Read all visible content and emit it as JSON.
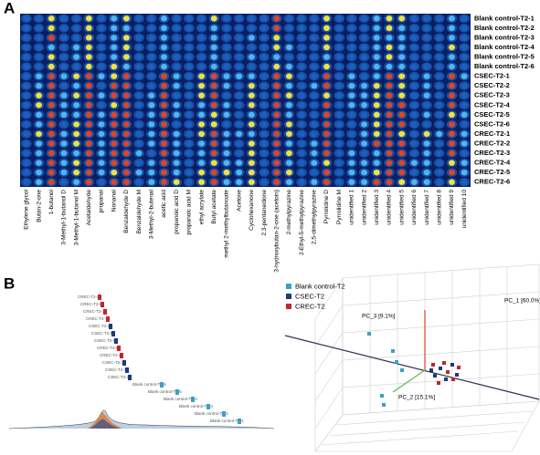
{
  "panel_a": {
    "label": "A",
    "rows": [
      "Blank control-T2-1",
      "Blank control-T2-2",
      "Blank control-T2-3",
      "Blank control-T2-4",
      "Blank control-T2-5",
      "Blank control-T2-6",
      "CSEC-T2-1",
      "CSEC-T2-2",
      "CSEC-T2-3",
      "CSEC-T2-4",
      "CSEC-T2-5",
      "CSEC-T2-6",
      "CREC-T2-1",
      "CREC-T2-2",
      "CREC-T2-3",
      "CREC-T2-4",
      "CREC-T2-5",
      "CREC-T2-6"
    ],
    "columns": [
      "Ethylene glycol",
      "Butan-2-one",
      "1-butanol",
      "3-Methyl-1-butanol D",
      "3-Methyl-1-butanol M",
      "Acetaldehyde",
      "propanal",
      "Nonanal",
      "Benzaldehyde D",
      "Benzaldehyde M",
      "3-Methyl-2-butenal",
      "acetic acid",
      "propanoic acid D",
      "propanoic acid M",
      "ethyl acrylate",
      "Butyl acetate",
      "methyl 2-methylbutanoate",
      "Acetone",
      "Cyclohexanone",
      "2,3-pentanedione",
      "3-hydroxybutan-2-one (acetoin)",
      "2-methylpyrazine",
      "2-Ethyl-5-methylpyrazine",
      "2,5-dimethylpyrazine",
      "Pyrrolidine D",
      "Pyrrolidine M",
      "unidentified 1",
      "unidentified 2",
      "unidentified 3",
      "unidentified 4",
      "unidentified 5",
      "unidentified 6",
      "unidentified 7",
      "unidentified 8",
      "unidentified 9",
      "unidentified 10"
    ]
  },
  "panel_b": {
    "label": "B",
    "dendrogram_labels": [
      "CREC-T2-2",
      "CREC-T2-5",
      "CREC-T2-3",
      "CREC-T2-1",
      "CSEC-T2-2",
      "CSEC-T2-6",
      "CSEC-T2-5",
      "CREC-T2-6",
      "CREC-T2-4",
      "CSEC-T2-3",
      "CSEC-T2-1",
      "CSEC-T2-4",
      "Blank control-T2-6",
      "Blank control-T2-5",
      "Blank control-T2-4",
      "Blank control-T2-3",
      "Blank control-T2-2",
      "Blank control-T2-1"
    ],
    "pca": {
      "legend": [
        {
          "name": "Blank control-T2",
          "color": "#3aa0c8"
        },
        {
          "name": "CSEC-T2",
          "color": "#1f3a7a"
        },
        {
          "name": "CREC-T2",
          "color": "#c0282b"
        }
      ],
      "axes": [
        "PC_1 [60.0%]",
        "PC_2 [15.1%]",
        "PC_3 [9.1%]"
      ]
    }
  }
}
